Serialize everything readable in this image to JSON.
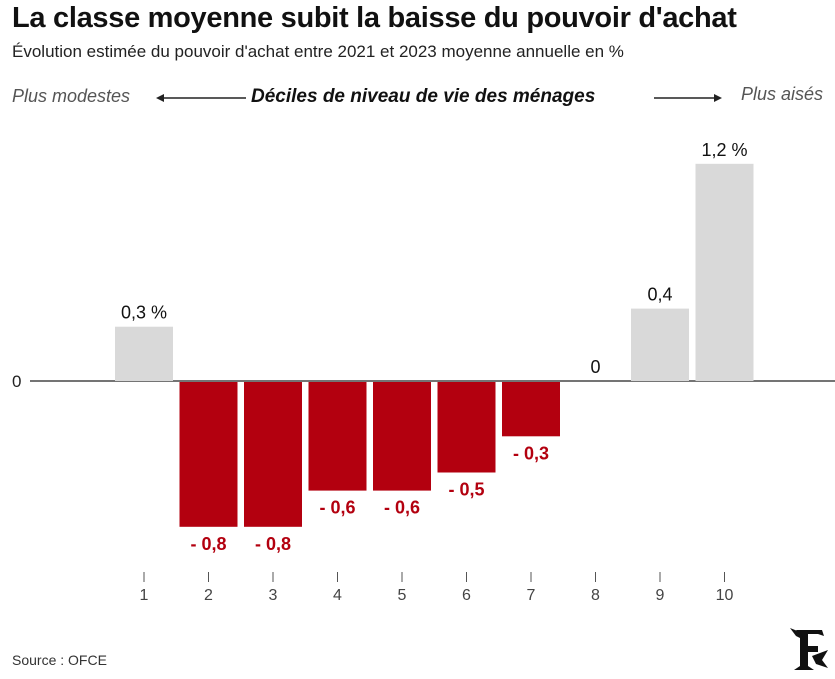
{
  "title": "La classe moyenne subit la baisse du pouvoir d'achat",
  "subtitle": "Évolution estimée du pouvoir d'achat entre 2021 et 2023 moyenne annuelle en %",
  "direction_left": "Plus modestes",
  "direction_right": "Plus aisés",
  "source": "Source : OFCE",
  "chart_data": {
    "type": "bar",
    "xlabel": "Déciles de niveau de vie des ménages",
    "ylabel": "",
    "categories": [
      "1",
      "2",
      "3",
      "4",
      "5",
      "6",
      "7",
      "8",
      "9",
      "10"
    ],
    "values": [
      0.3,
      -0.8,
      -0.8,
      -0.6,
      -0.6,
      -0.5,
      -0.3,
      0,
      0.4,
      1.2
    ],
    "data_labels": [
      "0,3 %",
      "- 0,8",
      "- 0,8",
      "- 0,6",
      "- 0,6",
      "- 0,5",
      "- 0,3",
      "0",
      "0,4",
      "1,2 %"
    ],
    "y_tick_labels": [
      "0"
    ],
    "ylim": [
      -1.1,
      1.45
    ],
    "grid": false,
    "colors": {
      "positive": "#d9d9d9",
      "negative": "#b3000f",
      "positive_label": "#111111",
      "negative_label": "#b3000f",
      "axis": "#222222"
    }
  }
}
